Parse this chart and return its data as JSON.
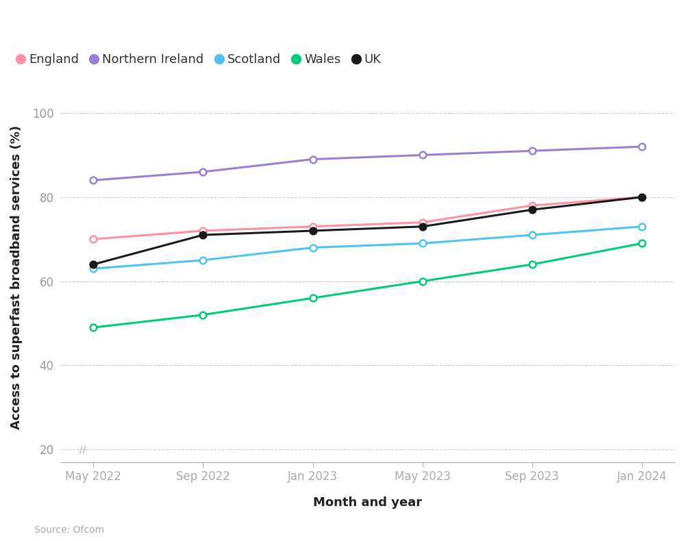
{
  "x_labels": [
    "May 2022",
    "Sep 2022",
    "Jan 2023",
    "May 2023",
    "Sep 2023",
    "Jan 2024"
  ],
  "x_positions": [
    0,
    1,
    2,
    3,
    4,
    5
  ],
  "series": {
    "England": {
      "values": [
        70,
        72,
        73,
        74,
        78,
        80
      ],
      "color": "#FF8FA3",
      "marker": "o"
    },
    "Northern Ireland": {
      "values": [
        84,
        86,
        89,
        90,
        91,
        92
      ],
      "color": "#9B7FD4",
      "marker": "o"
    },
    "Scotland": {
      "values": [
        63,
        65,
        68,
        69,
        71,
        73
      ],
      "color": "#4FC3F7",
      "marker": "o"
    },
    "Wales": {
      "values": [
        49,
        52,
        56,
        60,
        64,
        69
      ],
      "color": "#00CC78",
      "marker": "o"
    },
    "UK": {
      "values": [
        64,
        71,
        72,
        73,
        77,
        80
      ],
      "color": "#1A1A1A",
      "marker": "o"
    }
  },
  "ylabel": "Access to superfast broadband services (%)",
  "xlabel": "Month and year",
  "yticks": [
    20,
    40,
    60,
    80,
    100
  ],
  "ylim": [
    17,
    105
  ],
  "background_color": "#FFFFFF",
  "grid_color": "#CCCCCC",
  "source_text": "Source: Ofcom",
  "legend_order": [
    "England",
    "Northern Ireland",
    "Scotland",
    "Wales",
    "UK"
  ],
  "tick_label_color": "#999999",
  "axis_label_color": "#222222"
}
